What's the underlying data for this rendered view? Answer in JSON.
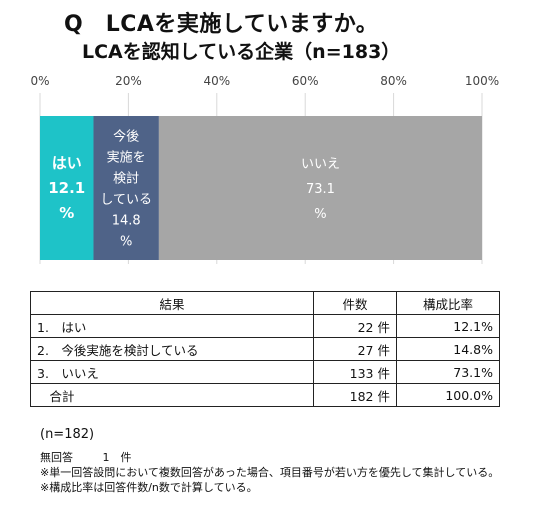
{
  "title": "Q　LCAを実施していますか。",
  "subtitle": "LCAを認知している企業（n=183）",
  "chart_data": {
    "type": "bar",
    "orientation": "horizontal-stacked-100",
    "xlim": [
      0,
      100
    ],
    "ticks": [
      "0%",
      "20%",
      "40%",
      "60%",
      "80%",
      "100%"
    ],
    "segments": [
      {
        "value": 12.1,
        "label_lines": [
          "はい",
          "12.1",
          "%"
        ],
        "color": "#1ec3c8",
        "text_color": "#ffffff",
        "bold": true
      },
      {
        "value": 14.8,
        "label_lines": [
          "今後",
          "実施を",
          "検討",
          "している",
          "14.8",
          "%"
        ],
        "color": "#4f6388",
        "text_color": "#ffffff",
        "bold": false
      },
      {
        "value": 73.1,
        "label_lines": [
          "いいえ",
          "73.1",
          "%"
        ],
        "color": "#a6a6a6",
        "text_color": "#ffffff",
        "bold": false
      }
    ],
    "grid": true
  },
  "table": {
    "headers": [
      "結果",
      "件数",
      "構成比率"
    ],
    "rows": [
      {
        "label": "1.　はい",
        "count": "22 件",
        "ratio": "12.1%"
      },
      {
        "label": "2.　今後実施を検討している",
        "count": "27 件",
        "ratio": "14.8%"
      },
      {
        "label": "3.　いいえ",
        "count": "133 件",
        "ratio": "73.1%"
      },
      {
        "label": "　合計",
        "count": "182 件",
        "ratio": "100.0%"
      }
    ]
  },
  "n_note": "(n=182)",
  "notes": {
    "no_answer_label": "無回答",
    "no_answer_count": "1　件",
    "line1": "※単一回答設問において複数回答があった場合、項目番号が若い方を優先して集計している。",
    "line2": "※構成比率は回答件数/n数で計算している。"
  }
}
